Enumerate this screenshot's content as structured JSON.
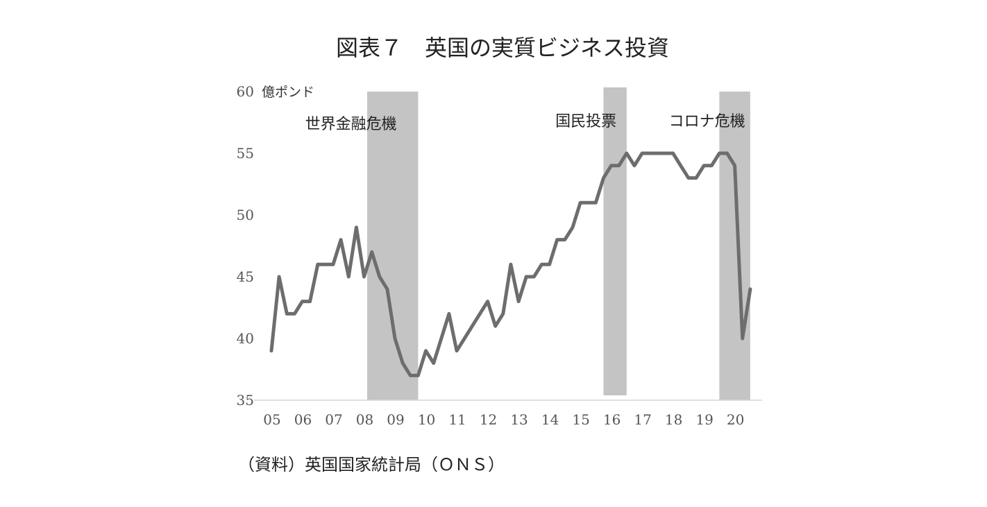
{
  "chart_data": {
    "type": "line",
    "title": "図表７　英国の実質ビジネス投資",
    "unit_label": "億ポンド",
    "source": "（資料）英国国家統計局（ＯＮＳ）",
    "ylim": [
      35,
      60
    ],
    "y_ticks": [
      35,
      40,
      45,
      50,
      55,
      60
    ],
    "x_range": [
      2005,
      2020.75
    ],
    "x_ticks": [
      {
        "label": "05",
        "x": 2005
      },
      {
        "label": "06",
        "x": 2006
      },
      {
        "label": "07",
        "x": 2007
      },
      {
        "label": "08",
        "x": 2008
      },
      {
        "label": "09",
        "x": 2009
      },
      {
        "label": "10",
        "x": 2010
      },
      {
        "label": "11",
        "x": 2011
      },
      {
        "label": "12",
        "x": 2012
      },
      {
        "label": "13",
        "x": 2013
      },
      {
        "label": "14",
        "x": 2014
      },
      {
        "label": "15",
        "x": 2015
      },
      {
        "label": "16",
        "x": 2016
      },
      {
        "label": "17",
        "x": 2017
      },
      {
        "label": "18",
        "x": 2018
      },
      {
        "label": "19",
        "x": 2019
      },
      {
        "label": "20",
        "x": 2020
      }
    ],
    "grid": false,
    "line_color": "#6d6d6d",
    "band_color": "#c4c4c4",
    "shaded_periods": [
      {
        "label": "世界金融危機",
        "start": 2008.1,
        "end": 2009.75
      },
      {
        "label": "国民投票",
        "start": 2015.75,
        "end": 2016.5
      },
      {
        "label": "コロナ危機",
        "start": 2019.5,
        "end": 2020.5
      }
    ],
    "series": [
      {
        "points": [
          [
            2005.0,
            39
          ],
          [
            2005.25,
            45
          ],
          [
            2005.5,
            42
          ],
          [
            2005.75,
            42
          ],
          [
            2006.0,
            43
          ],
          [
            2006.25,
            43
          ],
          [
            2006.5,
            46
          ],
          [
            2006.75,
            46
          ],
          [
            2007.0,
            46
          ],
          [
            2007.25,
            48
          ],
          [
            2007.5,
            45
          ],
          [
            2007.75,
            49
          ],
          [
            2008.0,
            45
          ],
          [
            2008.25,
            47
          ],
          [
            2008.5,
            45
          ],
          [
            2008.75,
            44
          ],
          [
            2009.0,
            40
          ],
          [
            2009.25,
            38
          ],
          [
            2009.5,
            37
          ],
          [
            2009.75,
            37
          ],
          [
            2010.0,
            39
          ],
          [
            2010.25,
            38
          ],
          [
            2010.5,
            40
          ],
          [
            2010.75,
            42
          ],
          [
            2011.0,
            39
          ],
          [
            2011.25,
            40
          ],
          [
            2011.5,
            41
          ],
          [
            2011.75,
            42
          ],
          [
            2012.0,
            43
          ],
          [
            2012.25,
            41
          ],
          [
            2012.5,
            42
          ],
          [
            2012.75,
            46
          ],
          [
            2013.0,
            43
          ],
          [
            2013.25,
            45
          ],
          [
            2013.5,
            45
          ],
          [
            2013.75,
            46
          ],
          [
            2014.0,
            46
          ],
          [
            2014.25,
            48
          ],
          [
            2014.5,
            48
          ],
          [
            2014.75,
            49
          ],
          [
            2015.0,
            51
          ],
          [
            2015.25,
            51
          ],
          [
            2015.5,
            51
          ],
          [
            2015.75,
            53
          ],
          [
            2016.0,
            54
          ],
          [
            2016.25,
            54
          ],
          [
            2016.5,
            55
          ],
          [
            2016.75,
            54
          ],
          [
            2017.0,
            55
          ],
          [
            2017.25,
            55
          ],
          [
            2017.5,
            55
          ],
          [
            2017.75,
            55
          ],
          [
            2018.0,
            55
          ],
          [
            2018.25,
            54
          ],
          [
            2018.5,
            53
          ],
          [
            2018.75,
            53
          ],
          [
            2019.0,
            54
          ],
          [
            2019.25,
            54
          ],
          [
            2019.5,
            55
          ],
          [
            2019.75,
            55
          ],
          [
            2020.0,
            54
          ],
          [
            2020.25,
            40
          ],
          [
            2020.5,
            44
          ]
        ]
      }
    ]
  }
}
